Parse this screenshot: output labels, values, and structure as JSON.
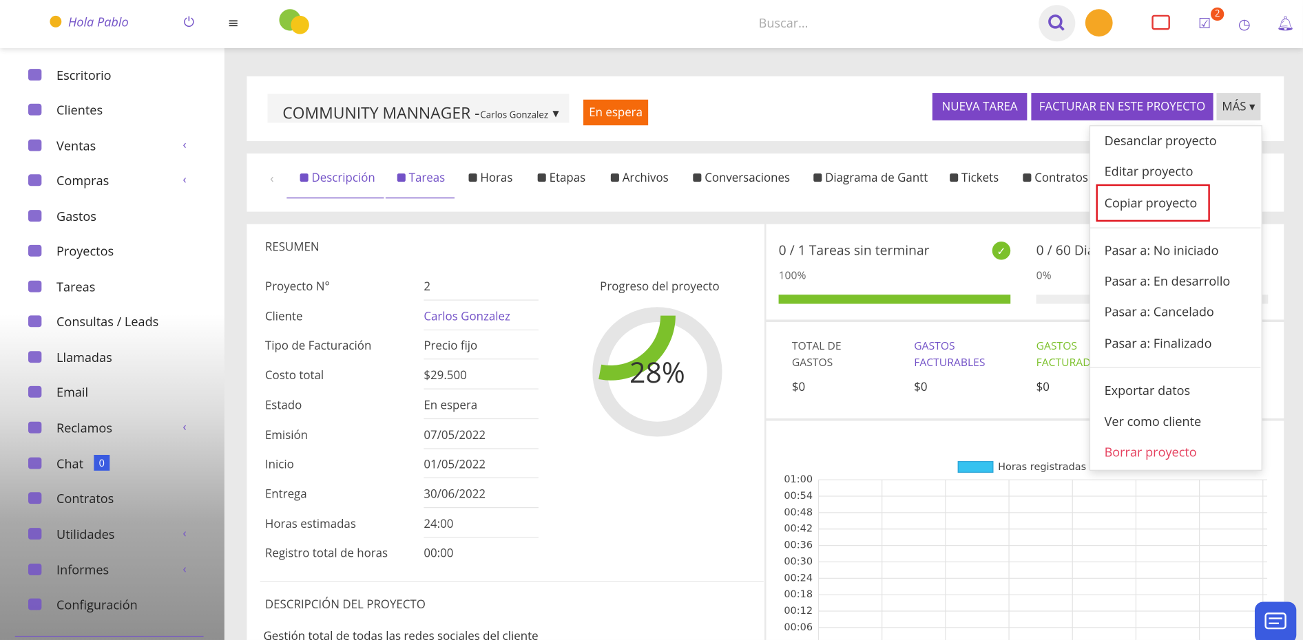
{
  "header": {
    "greeting": "Hola Pablo",
    "search_placeholder": "Buscar...",
    "tasks_badge": 2
  },
  "sidebar": {
    "items": [
      "Escritorio",
      "Clientes",
      "Ventas",
      "Compras",
      "Gastos",
      "Proyectos",
      "Tareas",
      "Consultas / Leads",
      "Llamadas",
      "Email",
      "Reclamos",
      "Chat",
      "Contratos",
      "Utilidades",
      "Informes",
      "Configuración"
    ],
    "chat_badge": 0
  },
  "project": {
    "title": "COMMUNITY MANNAGER -",
    "client": "Carlos Gonzalez",
    "status": "En espera",
    "buttons": [
      "NUEVA TAREA",
      "FACTURAR EN ESTE PROYECTO",
      "MÁS"
    ]
  },
  "tabs": [
    "Descripción",
    "Tareas",
    "Horas",
    "Etapas",
    "Archivos",
    "Conversaciones",
    "Diagrama de Gantt",
    "Tickets",
    "Contratos"
  ],
  "summary": {
    "heading": "RESUMEN",
    "rows": [
      [
        "Proyecto N°",
        "2"
      ],
      [
        "Cliente",
        "Carlos Gonzalez"
      ],
      [
        "Tipo de Facturación",
        "Precio fijo"
      ],
      [
        "Costo total",
        "$29.500"
      ],
      [
        "Estado",
        "En espera"
      ],
      [
        "Emisión",
        "07/05/2022"
      ],
      [
        "Inicio",
        "01/05/2022"
      ],
      [
        "Entrega",
        "30/06/2022"
      ],
      [
        "Horas estimadas",
        "24:00"
      ],
      [
        "Registro total de horas",
        "00:00"
      ]
    ]
  },
  "progress": {
    "label": "Progreso del proyecto",
    "value": 28,
    "value_label": "28%"
  },
  "description": {
    "heading": "DESCRIPCIÓN DEL PROYECTO",
    "text": "Gestión total de todas las redes sociales del cliente"
  },
  "stats": [
    {
      "label": "0 / 1 Tareas sin terminar",
      "value": 100,
      "value_label": "100%"
    },
    {
      "label": "0 / 60 Dia",
      "value": 0,
      "value_label": "0%"
    }
  ],
  "expenses": [
    {
      "label": "TOTAL DE GASTOS",
      "amount": "$0"
    },
    {
      "label": "GASTOS FACTURABLES",
      "amount": "$0"
    },
    {
      "label": "GASTOS FACTURAD",
      "amount": "$0"
    }
  ],
  "hours_chart": {
    "type": "bar",
    "series": [
      {
        "name": "Horas registradas",
        "color": "#36c2f0"
      }
    ],
    "ylim": [
      0,
      60
    ],
    "yticks": [
      {
        "value": 60,
        "label": "01:00"
      },
      {
        "value": 54,
        "label": "00:54"
      },
      {
        "value": 48,
        "label": "00:48"
      },
      {
        "value": 42,
        "label": "00:42"
      },
      {
        "value": 36,
        "label": "00:36"
      },
      {
        "value": 30,
        "label": "00:30"
      },
      {
        "value": 24,
        "label": "00:24"
      },
      {
        "value": 18,
        "label": "00:18"
      },
      {
        "value": 12,
        "label": "00:12"
      },
      {
        "value": 6,
        "label": "00:06"
      }
    ],
    "grid": true
  },
  "menu": {
    "items": [
      "Desanclar proyecto",
      "Editar proyecto",
      "Copiar proyecto",
      "Pasar a: No iniciado",
      "Pasar a: En desarrollo",
      "Pasar a: Cancelado",
      "Pasar a: Finalizado",
      "Exportar datos",
      "Ver como cliente",
      "Borrar proyecto"
    ],
    "highlighted": 2
  }
}
